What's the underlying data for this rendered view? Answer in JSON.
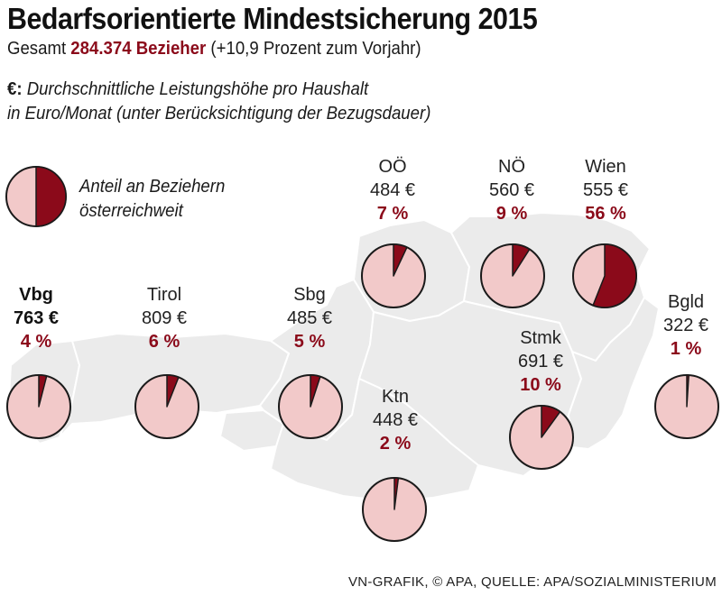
{
  "title": "Bedarfsorientierte Mindestsicherung 2015",
  "subtitle": {
    "prefix": "Gesamt",
    "total": "284.374 Bezieher",
    "change": "(+10,9 Prozent zum Vorjahr)"
  },
  "note": {
    "symbol": "€:",
    "line1": "Durchschnittliche Leistungshöhe pro Haushalt",
    "line2": "in Euro/Monat (unter Berücksichtigung der Bezugsdauer)"
  },
  "legend": {
    "line1": "Anteil an Beziehern",
    "line2": "österreichweit"
  },
  "colors": {
    "pie_fill": "#f2c9c9",
    "slice": "#8b0a1a",
    "map": "#ebebeb",
    "map_border": "#ffffff"
  },
  "source": "VN-GRAFIK, © APA, QUELLE: APA/SOZIALMINISTERIUM",
  "chart_data": {
    "type": "pie",
    "title": "Bedarfsorientierte Mindestsicherung 2015",
    "unit_amount": "Euro/Monat",
    "unit_share": "Prozent",
    "legend_example_share": 50,
    "regions": [
      {
        "id": "vbg",
        "name": "Vbg",
        "amount": "763 €",
        "share_label": "4 %",
        "share": 4,
        "bold": true
      },
      {
        "id": "tirol",
        "name": "Tirol",
        "amount": "809 €",
        "share_label": "6 %",
        "share": 6
      },
      {
        "id": "sbg",
        "name": "Sbg",
        "amount": "485 €",
        "share_label": "5 %",
        "share": 5
      },
      {
        "id": "ooe",
        "name": "OÖ",
        "amount": "484 €",
        "share_label": "7 %",
        "share": 7
      },
      {
        "id": "noe",
        "name": "NÖ",
        "amount": "560 €",
        "share_label": "9 %",
        "share": 9
      },
      {
        "id": "wien",
        "name": "Wien",
        "amount": "555 €",
        "share_label": "56 %",
        "share": 56
      },
      {
        "id": "ktn",
        "name": "Ktn",
        "amount": "448 €",
        "share_label": "2 %",
        "share": 2
      },
      {
        "id": "stmk",
        "name": "Stmk",
        "amount": "691 €",
        "share_label": "10 %",
        "share": 10
      },
      {
        "id": "bgld",
        "name": "Bgld",
        "amount": "322 €",
        "share_label": "1 %",
        "share": 1
      }
    ]
  }
}
